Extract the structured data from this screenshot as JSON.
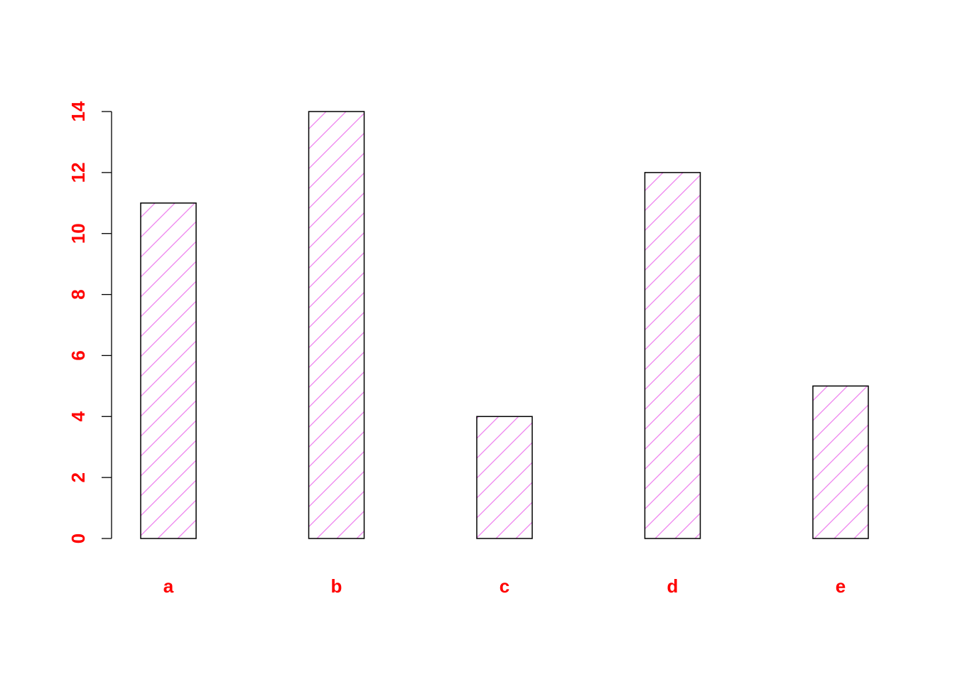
{
  "chart_data": {
    "type": "bar",
    "categories": [
      "a",
      "b",
      "c",
      "d",
      "e"
    ],
    "values": [
      11,
      14,
      4,
      12,
      5
    ],
    "title": "",
    "xlabel": "",
    "ylabel": "",
    "ylim": [
      0,
      14
    ],
    "yticks": [
      0,
      2,
      4,
      6,
      8,
      10,
      12,
      14
    ],
    "grid": false,
    "legend": "none",
    "colors": {
      "label": "#ff0000",
      "hatch": "#ee82ee",
      "outline": "#000000",
      "background": "#ffffff"
    },
    "hatch_pattern": "diagonal-lines"
  }
}
